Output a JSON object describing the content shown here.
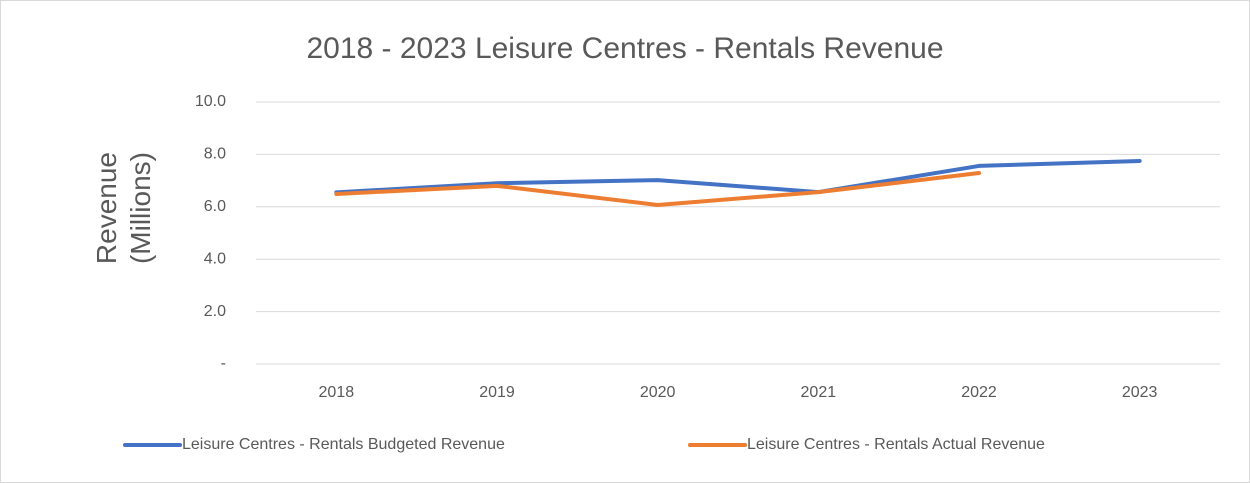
{
  "chart_data": {
    "type": "line",
    "title": "2018 - 2023 Leisure Centres - Rentals Revenue",
    "y_label": "Revenue (Millions)",
    "categories": [
      "2018",
      "2019",
      "2020",
      "2021",
      "2022",
      "2023"
    ],
    "series": [
      {
        "name": "Leisure Centres - Rentals Budgeted  Revenue",
        "color": "#4472c4",
        "values": [
          6.55,
          6.9,
          7.02,
          6.56,
          7.56,
          7.75
        ]
      },
      {
        "name": "Leisure Centres - Rentals Actual Revenue",
        "color": "#ed7d31",
        "values": [
          6.49,
          6.8,
          6.07,
          6.56,
          7.29,
          null
        ]
      }
    ],
    "ylim": [
      0,
      10
    ],
    "yticks": [
      {
        "value": 0,
        "label": "-"
      },
      {
        "value": 2,
        "label": "2.0"
      },
      {
        "value": 4,
        "label": "4.0"
      },
      {
        "value": 6,
        "label": "6.0"
      },
      {
        "value": 8,
        "label": "8.0"
      },
      {
        "value": 10,
        "label": "10.0"
      }
    ],
    "grid": true,
    "legend": "bottom"
  }
}
